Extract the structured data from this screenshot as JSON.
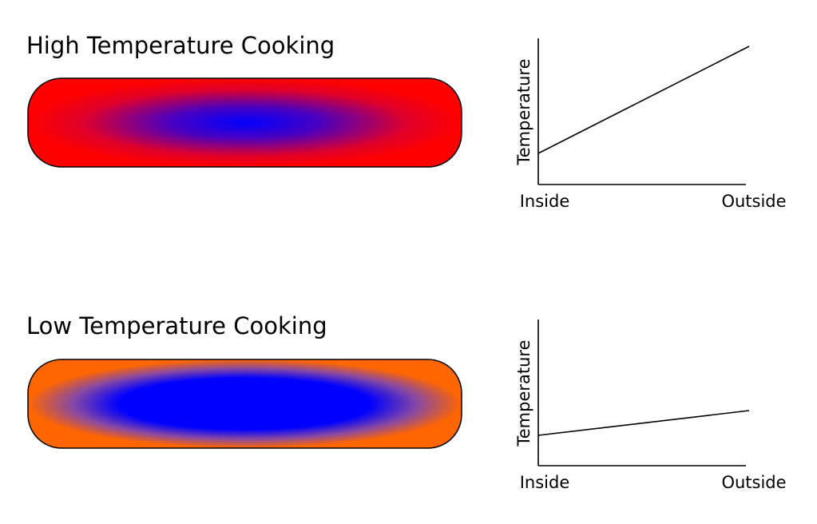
{
  "panels": [
    {
      "title": "High Temperature Cooking",
      "chart": {
        "y_label": "Temperature",
        "x_labels": [
          "Inside",
          "Outside"
        ]
      }
    },
    {
      "title": "Low Temperature Cooking",
      "chart": {
        "y_label": "Temperature",
        "x_labels": [
          "Inside",
          "Outside"
        ]
      }
    }
  ]
}
